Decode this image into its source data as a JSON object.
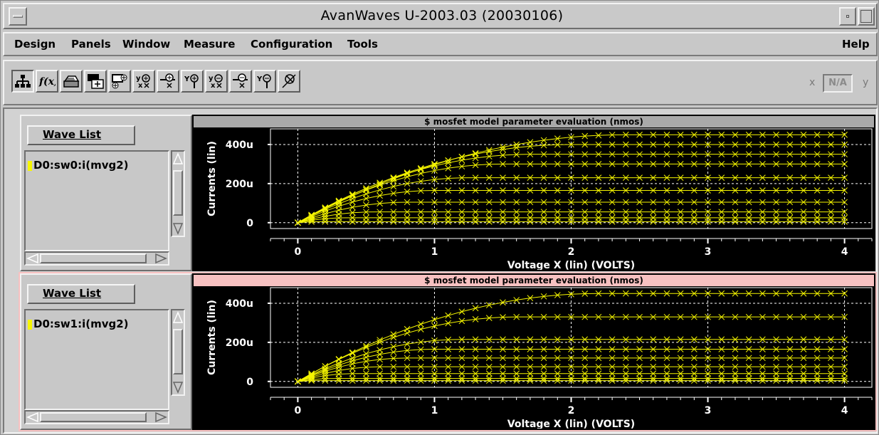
{
  "window": {
    "title": "AvanWaves U-2003.03  (20030106)"
  },
  "menubar": {
    "items": [
      {
        "label": "Design"
      },
      {
        "label": "Panels"
      },
      {
        "label": "Window"
      },
      {
        "label": "Measure"
      },
      {
        "label": "Configuration"
      },
      {
        "label": "Tools"
      }
    ],
    "help": "Help"
  },
  "toolbar": {
    "buttons": [
      {
        "icon": "hierarchy-icon"
      },
      {
        "icon": "function-icon",
        "label": "f(x)"
      },
      {
        "icon": "print-icon"
      },
      {
        "icon": "add-panel-icon"
      },
      {
        "icon": "add-panels-icon"
      },
      {
        "icon": "y-vs-x-cursor-icon"
      },
      {
        "icon": "x-cursor-icon"
      },
      {
        "icon": "y-cursor-icon"
      },
      {
        "icon": "y-vs-x-cursor-2-icon"
      },
      {
        "icon": "x-cursor-2-icon"
      },
      {
        "icon": "y-cursor-2-icon"
      },
      {
        "icon": "delete-cursor-icon"
      }
    ],
    "coord_x": "x",
    "coord_value": "N/A",
    "coord_y": "y"
  },
  "panels": [
    {
      "wave_list_label": "Wave List",
      "wave": {
        "name": "D0:sw0:i(mvg2)",
        "color": "#f5f500"
      },
      "selected": false
    },
    {
      "wave_list_label": "Wave List",
      "wave": {
        "name": "D0:sw1:i(mvg2)",
        "color": "#f5f500"
      },
      "selected": true
    }
  ],
  "chart_data": [
    {
      "type": "line",
      "title": "$ mosfet model parameter evaluation (nmos)",
      "xlabel": "Voltage X (lin) (VOLTS)",
      "ylabel": "Currents (lin)",
      "xlim": [
        -0.2,
        4.2
      ],
      "ylim": [
        -30,
        480
      ],
      "x_ticks": [
        0,
        1,
        2,
        3,
        4
      ],
      "x_tick_labels": [
        "0",
        "1",
        "2",
        "3",
        "4"
      ],
      "y_ticks": [
        0,
        200,
        400
      ],
      "y_tick_labels": [
        "0",
        "200u",
        "400u"
      ],
      "grid": true,
      "marker": "x",
      "series_color": "#f5f500",
      "series": [
        {
          "saturation": 450,
          "knee": 2.4
        },
        {
          "saturation": 400,
          "knee": 2.0
        },
        {
          "saturation": 350,
          "knee": 1.7
        },
        {
          "saturation": 300,
          "knee": 1.5
        },
        {
          "saturation": 230,
          "knee": 1.25
        },
        {
          "saturation": 165,
          "knee": 1.0
        },
        {
          "saturation": 105,
          "knee": 0.8
        },
        {
          "saturation": 55,
          "knee": 0.55
        },
        {
          "saturation": 25,
          "knee": 0.35
        },
        {
          "saturation": 5,
          "knee": 0.15
        }
      ]
    },
    {
      "type": "line",
      "title": "$ mosfet model parameter evaluation (nmos)",
      "xlabel": "Voltage X (lin) (VOLTS)",
      "ylabel": "Currents (lin)",
      "xlim": [
        -0.2,
        4.2
      ],
      "ylim": [
        -30,
        480
      ],
      "x_ticks": [
        0,
        1,
        2,
        3,
        4
      ],
      "x_tick_labels": [
        "0",
        "1",
        "2",
        "3",
        "4"
      ],
      "y_ticks": [
        0,
        200,
        400
      ],
      "y_tick_labels": [
        "0",
        "200u",
        "400u"
      ],
      "grid": true,
      "marker": "x",
      "series_color": "#f5f500",
      "series": [
        {
          "saturation": 450,
          "knee": 2.2
        },
        {
          "saturation": 330,
          "knee": 1.6
        },
        {
          "saturation": 215,
          "knee": 1.2
        },
        {
          "saturation": 165,
          "knee": 1.0
        },
        {
          "saturation": 120,
          "knee": 0.8
        },
        {
          "saturation": 75,
          "knee": 0.6
        },
        {
          "saturation": 40,
          "knee": 0.4
        },
        {
          "saturation": 15,
          "knee": 0.25
        },
        {
          "saturation": 4,
          "knee": 0.1
        }
      ]
    }
  ]
}
